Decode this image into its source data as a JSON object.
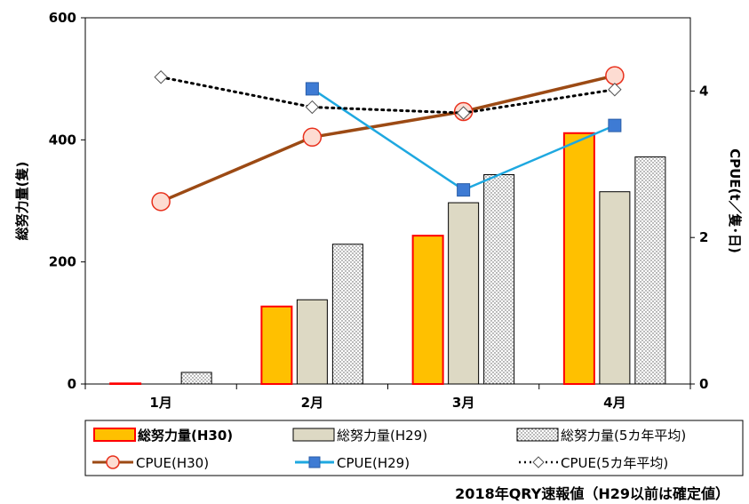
{
  "chart_data": {
    "type": "bar",
    "categories": [
      "1月",
      "2月",
      "3月",
      "4月"
    ],
    "ylabel": "総努力量(隻)",
    "y2label": "CPUE(t／隻･日)",
    "ylim": [
      0,
      600
    ],
    "y2lim": [
      0,
      5
    ],
    "yticks": [
      "0",
      "200",
      "400",
      "600"
    ],
    "y2ticks": [
      "0",
      "2",
      "4"
    ],
    "grid": false,
    "legend_position": "bottom",
    "bar_series": [
      {
        "name": "総努力量(H30)",
        "values": [
          1,
          127,
          243,
          411
        ],
        "color": "#FFC000",
        "edge": "#FF0000"
      },
      {
        "name": "総努力量(H29)",
        "values": [
          null,
          138,
          297,
          315
        ],
        "color": "#DDD9C4",
        "edge": "#000000"
      },
      {
        "name": "総努力量(5カ年平均)",
        "values": [
          19,
          229,
          343,
          372
        ],
        "color": "#FFFFFF",
        "edge": "#000000",
        "pattern": "dots"
      }
    ],
    "line_series": [
      {
        "name": "CPUE(H30)",
        "values": [
          2.49,
          3.37,
          3.72,
          4.21
        ],
        "color": "#9C4A14",
        "marker": "circle"
      },
      {
        "name": "CPUE(H29)",
        "values": [
          null,
          4.03,
          2.65,
          3.53
        ],
        "color": "#1EA8E0",
        "marker": "square"
      },
      {
        "name": "CPUE(5カ年平均)",
        "values": [
          4.19,
          3.78,
          3.7,
          4.02
        ],
        "color": "#000000",
        "marker": "diamond",
        "dashed": true
      }
    ]
  },
  "footer_note": "2018年QRY速報値（H29以前は確定値）"
}
